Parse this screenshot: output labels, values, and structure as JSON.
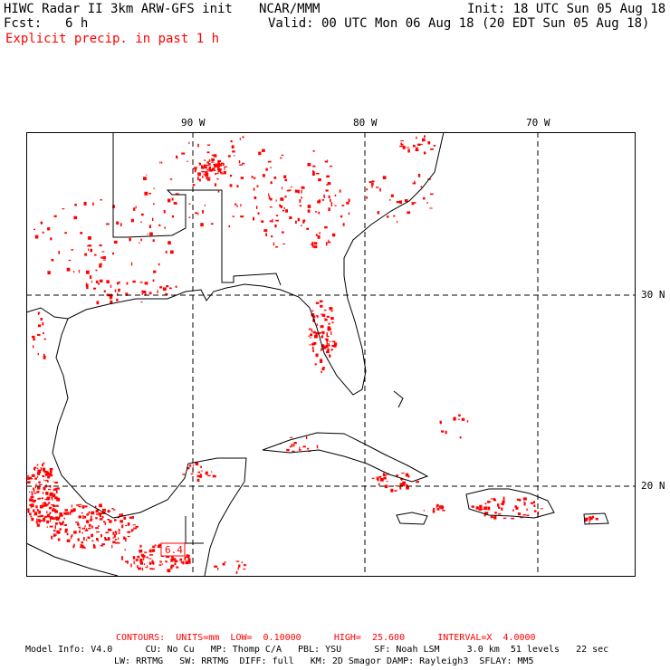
{
  "header": {
    "title": "HIWC Radar II 3km ARW-GFS init",
    "org": "NCAR/MMM",
    "init": "Init: 18 UTC Sun 05 Aug 18",
    "fcst_label": "Fcst:",
    "fcst_value": "6 h",
    "valid": "Valid: 00 UTC Mon 06 Aug 18 (20 EDT Sun 05 Aug 18)",
    "field": "Explicit precip. in past 1 h"
  },
  "map": {
    "lon_labels": [
      "90 W",
      "80 W",
      "70 W"
    ],
    "lat_labels": [
      "30 N",
      "20 N"
    ],
    "max_label": "6.4",
    "precip_color": "#ff0000"
  },
  "footer": {
    "contours": "CONTOURS:  UNITS=mm  LOW=  0.10000      HIGH=  25.600      INTERVAL=X  4.0000",
    "model_line1": "Model Info: V4.0      CU: No Cu   MP: Thomp C/A   PBL: YSU      SF: Noah LSM     3.0 km  51 levels   22 sec",
    "model_line2": "LW: RRTMG   SW: RRTMG  DIFF: full   KM: 2D Smagor DAMP: Rayleigh3  SFLAY: MM5"
  }
}
